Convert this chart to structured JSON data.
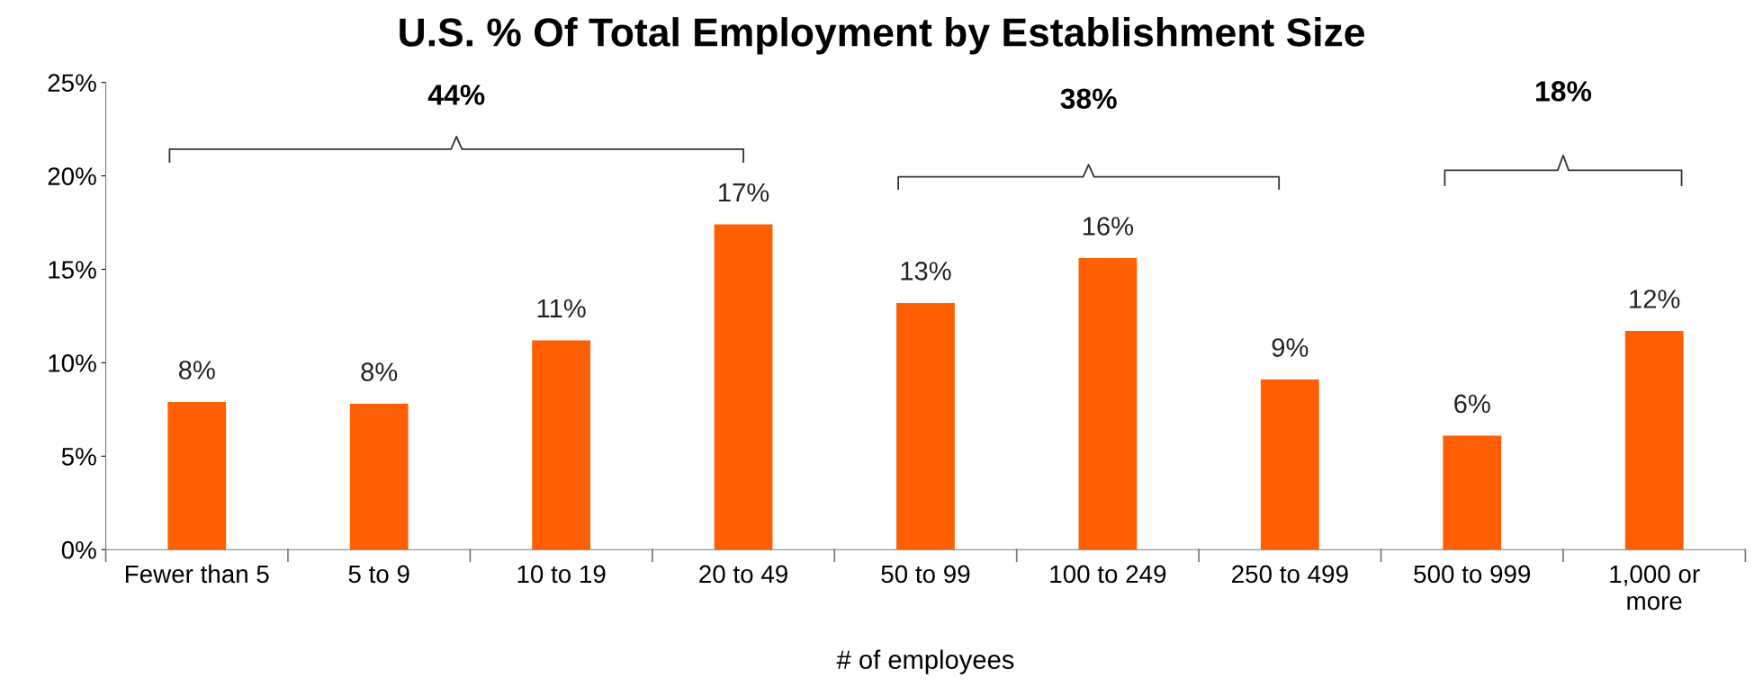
{
  "chart_data": {
    "type": "bar",
    "title": "U.S. % Of Total Employment by Establishment Size",
    "xlabel": "# of employees",
    "categories": [
      "Fewer than 5",
      "5 to 9",
      "10 to 19",
      "20 to 49",
      "50 to 99",
      "100 to 249",
      "250 to 499",
      "500 to 999",
      "1,000 or\nmore"
    ],
    "values": [
      7.9,
      7.8,
      11.2,
      17.4,
      13.2,
      15.6,
      9.1,
      6.1,
      11.7
    ],
    "value_labels": [
      "8%",
      "8%",
      "11%",
      "17%",
      "13%",
      "16%",
      "9%",
      "6%",
      "12%"
    ],
    "color": "#ff5f00",
    "ylim": [
      0,
      25
    ],
    "yticks": [
      {
        "value": 0,
        "label": "0%"
      },
      {
        "value": 5,
        "label": "5%"
      },
      {
        "value": 10,
        "label": "10%"
      },
      {
        "value": 15,
        "label": "15%"
      },
      {
        "value": 20,
        "label": "20%"
      },
      {
        "value": 25,
        "label": "25%"
      }
    ],
    "annotations": [
      "44%",
      "38%",
      "18%"
    ],
    "grid": false
  }
}
